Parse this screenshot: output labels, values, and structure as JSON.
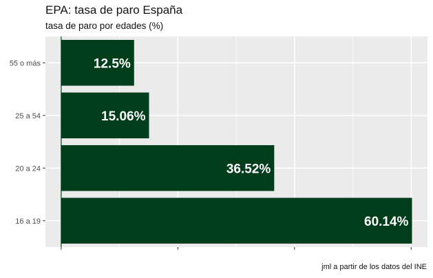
{
  "title": "EPA: tasa de paro España",
  "subtitle": "tasa de paro por edades (%)",
  "caption": "jml a partir de los datos del INE",
  "colors": {
    "bar": "#003d1a",
    "panel": "#ebebeb",
    "grid": "#ffffff",
    "label": "#ffffff",
    "axis_line": "#003d1a"
  },
  "chart_data": {
    "type": "bar",
    "orientation": "horizontal",
    "categories": [
      "16 a 19",
      "20 a 24",
      "25 a 54",
      "55 o más"
    ],
    "values": [
      60.14,
      36.52,
      15.06,
      12.5
    ],
    "data_labels": [
      "60.14%",
      "36.52%",
      "15.06%",
      "12.5%"
    ],
    "xlim": [
      -2.7,
      62.8
    ],
    "x_ticks": [
      0,
      20,
      40,
      60
    ],
    "x_tick_labels_visible": false,
    "grid": true,
    "legend": "none"
  }
}
